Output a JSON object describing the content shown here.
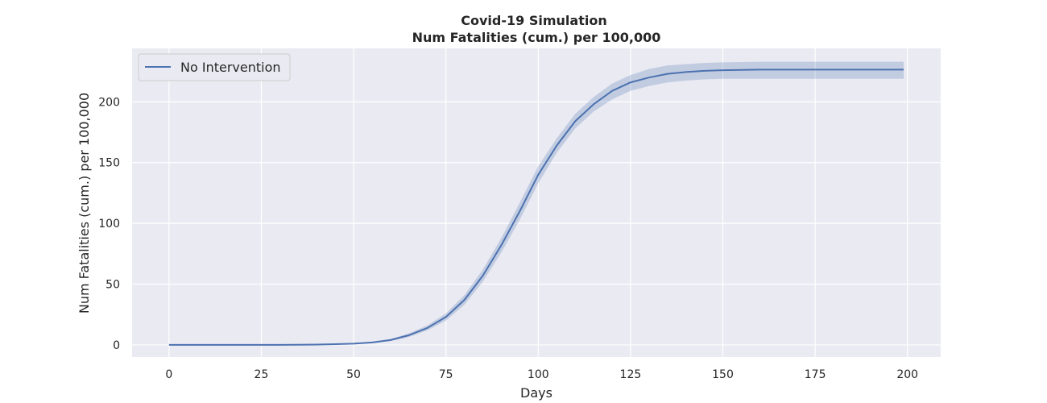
{
  "chart_data": {
    "type": "line",
    "title": "Covid-19 Simulation",
    "subtitle": "Num Fatalities (cum.) per 100,000",
    "xlabel": "Days",
    "ylabel": "Num Fatalities (cum.) per 100,000",
    "xlim": [
      -10,
      209
    ],
    "ylim": [
      -10,
      244
    ],
    "xticks": [
      0,
      25,
      50,
      75,
      100,
      125,
      150,
      175,
      200
    ],
    "yticks": [
      0,
      50,
      100,
      150,
      200
    ],
    "grid": true,
    "legend_position": "top-left",
    "background_color": "#EAEAF2",
    "series": [
      {
        "name": "No Intervention",
        "color": "#4C72B0",
        "x": [
          0,
          10,
          20,
          30,
          40,
          45,
          50,
          55,
          60,
          65,
          70,
          75,
          80,
          85,
          90,
          95,
          100,
          105,
          110,
          115,
          120,
          125,
          130,
          135,
          140,
          145,
          150,
          160,
          170,
          180,
          190,
          199
        ],
        "y": [
          0,
          0,
          0,
          0,
          0.3,
          0.6,
          1,
          2,
          4,
          8,
          14,
          23,
          37,
          57,
          82,
          110,
          140,
          164,
          184,
          198,
          209,
          216,
          220,
          223,
          224.5,
          225.5,
          226,
          226.5,
          226.5,
          226.5,
          226.5,
          226.5
        ],
        "ci_lower": [
          0,
          0,
          0,
          0,
          0.2,
          0.5,
          0.8,
          1.6,
          3.2,
          6.5,
          12,
          20,
          33,
          52,
          76,
          103,
          133,
          158,
          178,
          192,
          202,
          209,
          213,
          216,
          217.5,
          218.5,
          219,
          219,
          219,
          219,
          219,
          219
        ],
        "ci_upper": [
          0,
          0,
          0,
          0,
          0.4,
          0.7,
          1.2,
          2.4,
          4.8,
          9.5,
          16,
          26,
          41,
          62,
          88,
          117,
          147,
          170,
          190,
          204,
          215,
          222,
          227,
          230,
          231,
          232,
          232.5,
          233,
          233,
          233,
          233,
          233
        ]
      }
    ]
  }
}
